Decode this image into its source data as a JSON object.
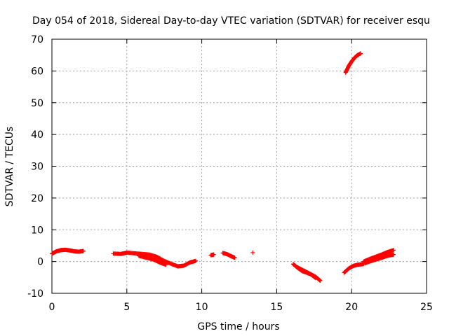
{
  "chart_data": {
    "type": "scatter",
    "title": "Day 054 of 2018, Sidereal Day-to-day VTEC variation (SDTVAR) for receiver esqu",
    "xlabel": "GPS time / hours",
    "ylabel": "SDTVAR / TECUs",
    "xlim": [
      0,
      25
    ],
    "ylim": [
      -10,
      70
    ],
    "xticks": [
      0,
      5,
      10,
      15,
      20,
      25
    ],
    "yticks": [
      -10,
      0,
      10,
      20,
      30,
      40,
      50,
      60,
      70
    ],
    "grid": true,
    "marker": "+",
    "color": "#ff0000",
    "segments": [
      {
        "x": [
          0.0,
          0.3,
          0.6,
          0.9,
          1.2,
          1.5,
          1.8,
          2.1
        ],
        "y": [
          2.5,
          3.2,
          3.6,
          3.7,
          3.5,
          3.2,
          3.1,
          3.3
        ]
      },
      {
        "x": [
          4.1,
          4.6,
          5.0,
          5.5,
          6.0,
          6.5,
          7.0,
          7.5,
          8.0,
          8.4,
          8.8,
          9.2,
          9.6
        ],
        "y": [
          2.5,
          2.4,
          2.8,
          2.6,
          2.4,
          2.2,
          1.5,
          0.2,
          -0.8,
          -1.5,
          -1.3,
          -0.3,
          0.2
        ]
      },
      {
        "x": [
          5.8,
          6.3,
          6.8,
          7.2,
          7.6
        ],
        "y": [
          1.8,
          1.2,
          0.6,
          -0.3,
          -1.0
        ]
      },
      {
        "x": [
          10.6,
          10.8
        ],
        "y": [
          2.0,
          2.2
        ]
      },
      {
        "x": [
          11.4,
          11.7,
          12.0,
          12.2
        ],
        "y": [
          2.7,
          2.3,
          1.6,
          1.2
        ]
      },
      {
        "x": [
          13.4
        ],
        "y": [
          2.8
        ]
      },
      {
        "x": [
          16.1,
          16.4,
          16.7,
          17.0,
          17.3,
          17.6
        ],
        "y": [
          -0.8,
          -2.0,
          -3.0,
          -3.5,
          -4.1,
          -5.2
        ]
      },
      {
        "x": [
          16.3,
          16.8,
          17.2,
          17.6,
          17.9
        ],
        "y": [
          -1.6,
          -2.8,
          -3.8,
          -4.8,
          -6.0
        ]
      },
      {
        "x": [
          19.5,
          19.8,
          20.1,
          20.4,
          20.8
        ],
        "y": [
          -3.5,
          -2.2,
          -1.4,
          -1.0,
          -0.8
        ]
      },
      {
        "x": [
          20.8,
          21.2,
          21.6,
          22.0,
          22.4,
          22.8
        ],
        "y": [
          0.0,
          0.8,
          1.5,
          2.2,
          3.0,
          3.6
        ]
      },
      {
        "x": [
          20.9,
          21.4,
          21.9,
          22.4,
          22.8
        ],
        "y": [
          -0.5,
          0.3,
          1.0,
          1.8,
          2.2
        ]
      },
      {
        "x": [
          19.6,
          19.8,
          20.0,
          20.2,
          20.4,
          20.6
        ],
        "y": [
          59.5,
          61.5,
          63.0,
          64.2,
          65.0,
          65.5
        ]
      }
    ]
  }
}
